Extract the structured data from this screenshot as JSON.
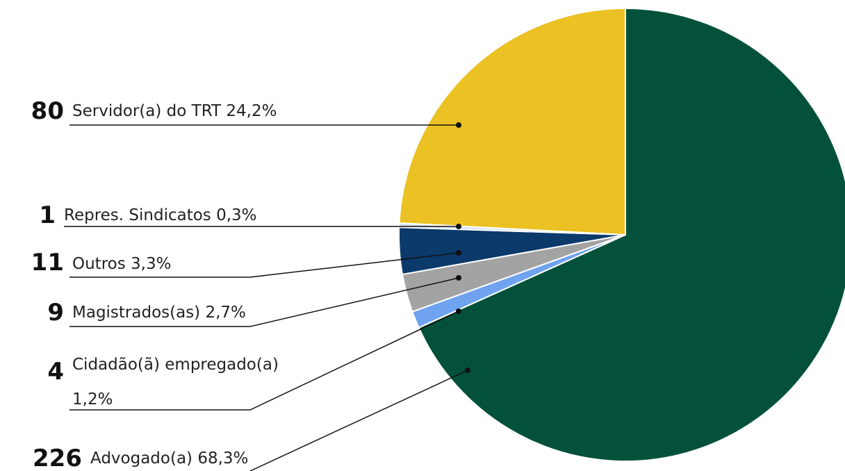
{
  "chart_data": {
    "type": "pie",
    "categories": [
      "Advogado(a)",
      "Cidadão(ã) empregado(a)",
      "Magistrados(as)",
      "Outros",
      "Repres. Sindicatos",
      "Servidor(a) do TRT"
    ],
    "values": [
      226,
      4,
      9,
      11,
      1,
      80
    ],
    "value_labels": [
      "68,3%",
      "1,2%",
      "2,7%",
      "3,3%",
      "0,3%",
      "24,2%"
    ],
    "colors": [
      "#03513b",
      "#6fa3ef",
      "#a3a3a3",
      "#0b3a6b",
      "#d3e2f1",
      "#ecc123"
    ]
  }
}
